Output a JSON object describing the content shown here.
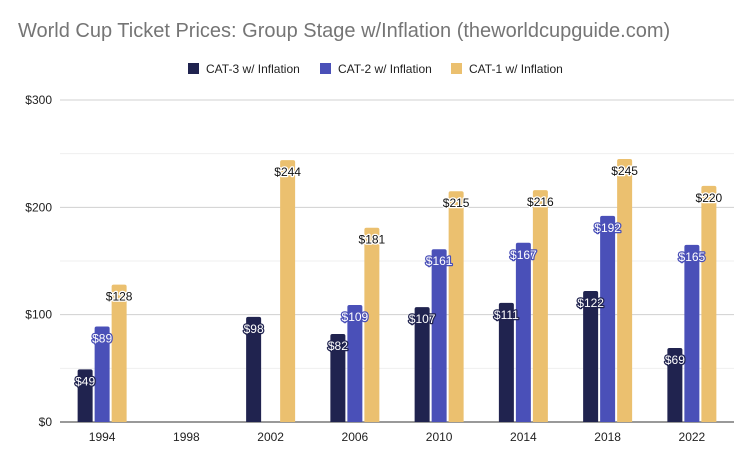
{
  "chart_data": {
    "type": "bar",
    "title": "World Cup Ticket Prices: Group Stage w/Inflation (theworldcupguide.com)",
    "xlabel": "",
    "ylabel": "",
    "categories": [
      "1994",
      "1998",
      "2002",
      "2006",
      "2010",
      "2014",
      "2018",
      "2022"
    ],
    "series": [
      {
        "name": "CAT-3 w/ Inflation",
        "color": "#20234f",
        "values": [
          49,
          null,
          98,
          82,
          107,
          111,
          122,
          69
        ],
        "labels": [
          "$49",
          "",
          "$98",
          "$82",
          "$107",
          "$111",
          "$122",
          "$69"
        ]
      },
      {
        "name": "CAT-2 w/ Inflation",
        "color": "#4a50b8",
        "values": [
          89,
          null,
          null,
          109,
          161,
          167,
          192,
          165
        ],
        "labels": [
          "$89",
          "",
          "",
          "$109",
          "$161",
          "$167",
          "$192",
          "$165"
        ]
      },
      {
        "name": "CAT-1 w/ Inflation",
        "color": "#ebc06f",
        "values": [
          128,
          null,
          244,
          181,
          215,
          216,
          245,
          220
        ],
        "labels": [
          "$128",
          "",
          "$244",
          "$181",
          "$215",
          "$216",
          "$245",
          "$220"
        ]
      }
    ],
    "ylim": [
      0,
      300
    ],
    "yticks": [
      0,
      100,
      200,
      300
    ],
    "ytick_labels": [
      "$0",
      "$100",
      "$200",
      "$300"
    ],
    "grid": true,
    "legend_position": "top-center"
  }
}
